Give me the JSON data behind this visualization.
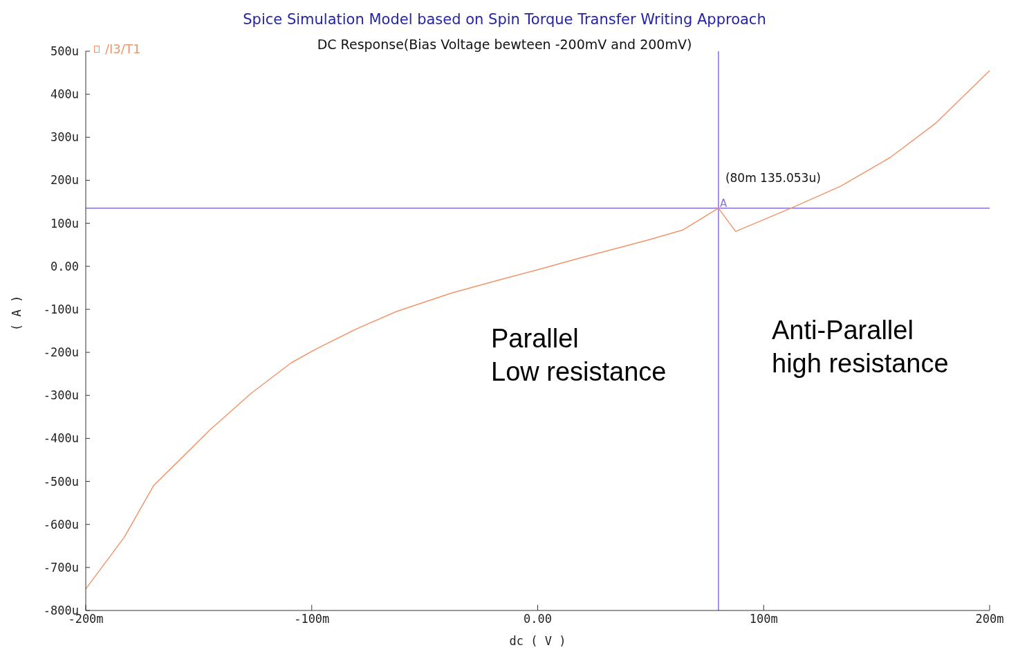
{
  "chart_data": {
    "type": "line",
    "title": "Spice Simulation Model based on Spin Torque Transfer Writing Approach",
    "subtitle": "DC Response(Bias Voltage bewteen -200mV and 200mV)",
    "xlabel": "dc ( V )",
    "ylabel": "( A )",
    "series": [
      {
        "name": "/I3/T1",
        "color": "#f0956a",
        "x": [
          -200,
          -183,
          -170,
          -145,
          -127,
          -109,
          -98,
          -80,
          -62.5,
          -38,
          -16,
          0,
          17,
          48,
          64,
          80,
          87.6,
          112,
          134,
          156,
          176,
          200
        ],
        "values": [
          -750,
          -630,
          -510,
          -380,
          -296,
          -224,
          -192,
          -145,
          -105,
          -62,
          -30,
          -8,
          17,
          60,
          84,
          135.053,
          81,
          135,
          186,
          253,
          332,
          455
        ]
      }
    ],
    "xlim": [
      -200,
      200
    ],
    "xticks": [
      {
        "value": -200,
        "label": "-200m"
      },
      {
        "value": -100,
        "label": "-100m"
      },
      {
        "value": 0,
        "label": "0.00"
      },
      {
        "value": 100,
        "label": "100m"
      },
      {
        "value": 200,
        "label": "200m"
      }
    ],
    "ylim": [
      -800,
      500
    ],
    "yticks": [
      {
        "value": -800,
        "label": "-800u"
      },
      {
        "value": -700,
        "label": "-700u"
      },
      {
        "value": -600,
        "label": "-600u"
      },
      {
        "value": -500,
        "label": "-500u"
      },
      {
        "value": -400,
        "label": "-400u"
      },
      {
        "value": -300,
        "label": "-300u"
      },
      {
        "value": -200,
        "label": "-200u"
      },
      {
        "value": -100,
        "label": "-100u"
      },
      {
        "value": 0,
        "label": "0.00"
      },
      {
        "value": 100,
        "label": "100u"
      },
      {
        "value": 200,
        "label": "200u"
      },
      {
        "value": 300,
        "label": "300u"
      },
      {
        "value": 400,
        "label": "400u"
      },
      {
        "value": 500,
        "label": "500u"
      }
    ],
    "ref_lines": [
      {
        "axis": "x",
        "value": 80,
        "color": "#8a6fd6"
      },
      {
        "axis": "y",
        "value": 135.053,
        "color": "#8a6fd6"
      }
    ],
    "annotations": [
      {
        "text": "(80m 135.053u)",
        "x": 80,
        "y": 135.053
      },
      {
        "text": "A",
        "x": 80,
        "y": 135.053
      },
      "Parallel\nLow resistance",
      "Anti-Parallel\nhigh resistance"
    ],
    "legend": "top left",
    "grid": false
  }
}
